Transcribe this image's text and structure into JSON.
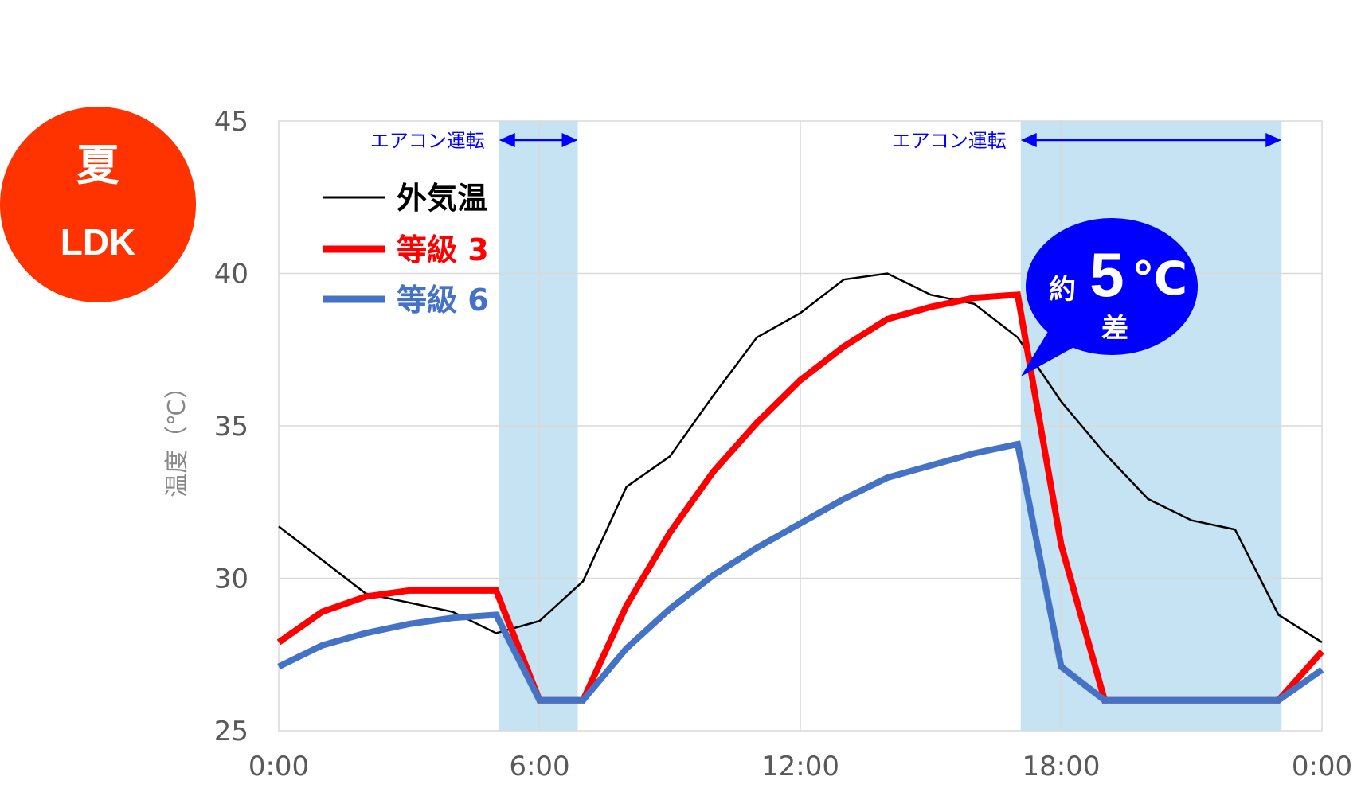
{
  "badge": {
    "season": "夏",
    "room": "LDK",
    "color": "#FF3300"
  },
  "chart_data": {
    "type": "line",
    "ylabel": "温度（℃）",
    "ylim": [
      25,
      45
    ],
    "yticks": [
      25,
      30,
      35,
      40,
      45
    ],
    "xlim": [
      0,
      24
    ],
    "xticks": [
      0,
      6,
      12,
      18,
      24
    ],
    "xtick_labels": [
      "0:00",
      "6:00",
      "12:00",
      "18:00",
      "0:00"
    ],
    "grid": true,
    "legend_placement": "top-left",
    "x": [
      0,
      1,
      2,
      3,
      4,
      5,
      6,
      7,
      8,
      9,
      10,
      11,
      12,
      13,
      14,
      15,
      16,
      17,
      18,
      19,
      20,
      21,
      22,
      23,
      24
    ],
    "series": [
      {
        "name": "外気温",
        "color": "#000000",
        "values": [
          31.7,
          30.6,
          29.5,
          29.2,
          28.9,
          28.2,
          28.6,
          29.9,
          33.0,
          34.0,
          36.0,
          37.9,
          38.7,
          39.8,
          40.0,
          39.3,
          39.0,
          37.9,
          35.8,
          34.1,
          32.6,
          31.9,
          31.6,
          28.8,
          27.9
        ]
      },
      {
        "name": "等級 3",
        "color": "#FF0000",
        "values": [
          27.9,
          28.9,
          29.4,
          29.6,
          29.6,
          29.6,
          26.0,
          26.0,
          29.1,
          31.5,
          33.5,
          35.1,
          36.5,
          37.6,
          38.5,
          38.9,
          39.2,
          39.3,
          31.1,
          26.0,
          26.0,
          26.0,
          26.0,
          26.0,
          27.6
        ]
      },
      {
        "name": "等級 6",
        "color": "#4472C4",
        "values": [
          27.1,
          27.8,
          28.2,
          28.5,
          28.7,
          28.8,
          26.0,
          26.0,
          27.7,
          29.0,
          30.1,
          31.0,
          31.8,
          32.6,
          33.3,
          33.7,
          34.1,
          34.4,
          27.1,
          26.0,
          26.0,
          26.0,
          26.0,
          26.0,
          27.0
        ]
      }
    ],
    "ac_periods": [
      {
        "label": "エアコン運転",
        "start": 5.07,
        "end": 6.88
      },
      {
        "label": "エアコン運転",
        "start": 17.07,
        "end": 23.07
      }
    ],
    "ac_color": "#C5E3F3",
    "annotation": {
      "prefix": "約",
      "value": "5",
      "unit": "℃",
      "suffix": "差",
      "color": "#0000FF",
      "x": 17.07,
      "y": 36.8
    }
  }
}
